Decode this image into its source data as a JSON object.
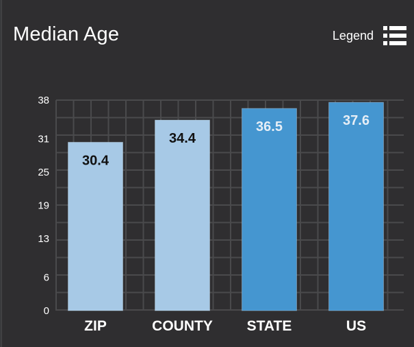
{
  "header": {
    "title": "Median Age",
    "legend_label": "Legend",
    "legend_icon": "list-icon"
  },
  "colors": {
    "panel_bg": "#2f2e30",
    "grid": "#4a4a4c",
    "light_bar": "#a7c9e6",
    "dark_bar": "#4596d0",
    "light_label": "#111111",
    "dark_label": "#e6eef6"
  },
  "chart_data": {
    "type": "bar",
    "title": "Median Age",
    "categories": [
      "ZIP",
      "COUNTY",
      "STATE",
      "US"
    ],
    "values": [
      30.4,
      34.4,
      36.5,
      37.6
    ],
    "value_labels": [
      "30.4",
      "34.4",
      "36.5",
      "37.6"
    ],
    "bar_colors": [
      "#a7c9e6",
      "#a7c9e6",
      "#4596d0",
      "#4596d0"
    ],
    "label_colors": [
      "#111111",
      "#111111",
      "#e6eef6",
      "#e6eef6"
    ],
    "y_ticks": [
      "0",
      "6",
      "13",
      "19",
      "25",
      "31",
      "38"
    ],
    "ylim": [
      0,
      38
    ],
    "grid": true,
    "xlabel": "",
    "ylabel": ""
  }
}
